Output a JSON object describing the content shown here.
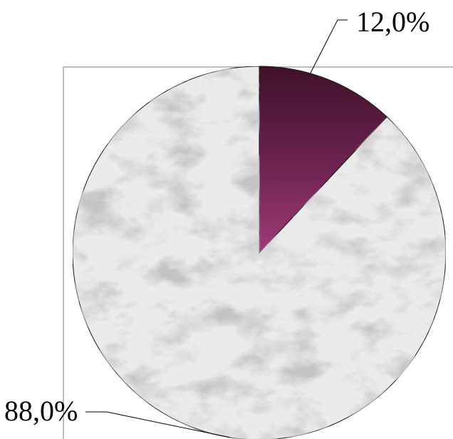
{
  "chart_data": {
    "type": "pie",
    "title": "",
    "slices": [
      {
        "label": "12,0%",
        "value": 12.0,
        "color": "#7a2a5c"
      },
      {
        "label": "88,0%",
        "value": 88.0,
        "color": "#ebebeb"
      }
    ],
    "start_angle_deg": 0,
    "direction": "clockwise",
    "frame_border": true,
    "legend": "none"
  }
}
